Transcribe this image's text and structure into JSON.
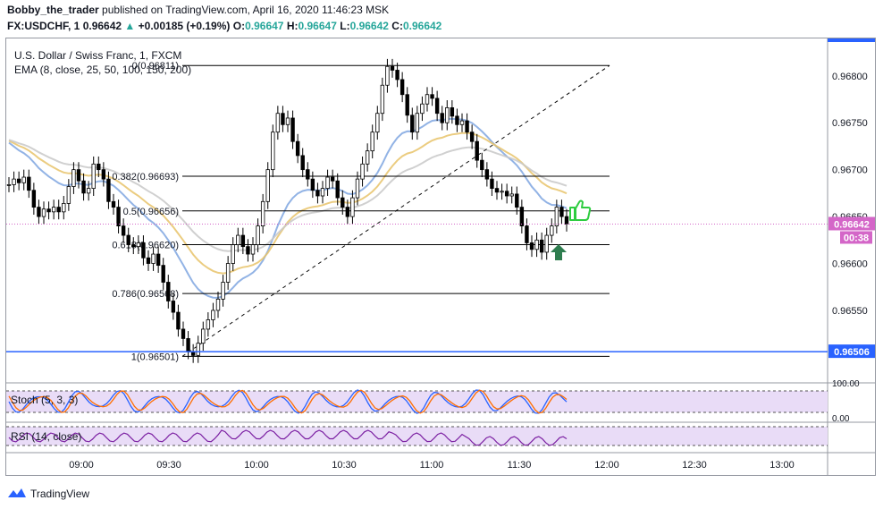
{
  "header": {
    "user": "Bobby_the_trader",
    "published": "published on TradingView.com, April 16, 2020 11:46:23 MSK",
    "symbol": "FX:USDCHF, 1",
    "last": "0.96642",
    "change": "+0.00185 (+0.19%)",
    "o_label": "O:",
    "o": "0.96647",
    "h_label": "H:",
    "h": "0.96647",
    "l_label": "L:",
    "l": "0.96642",
    "c_label": "C:",
    "c": "0.96642"
  },
  "legend": {
    "title": "U.S. Dollar / Swiss Franc, 1, FXCM",
    "ema": "EMA (8, close, 25, 50, 100, 150, 200)"
  },
  "indicators": {
    "stoch": "Stoch (5, 3, 3)",
    "rsi": "RSI (14, close)",
    "stoch_scale_top": "100.00",
    "stoch_scale_bottom": "0.00"
  },
  "badges": {
    "price": "0.96642",
    "countdown": "00:38",
    "level": "0.96506"
  },
  "footer": {
    "brand": "TradingView"
  },
  "colors": {
    "up_green": "#26a69a",
    "fib_line": "#000000",
    "h_level": "#2962ff",
    "price_badge": "#d466c8",
    "ema_blue": "#7fa6e0",
    "ema_gold": "#e8c36a",
    "ema_grey": "#c8c8c8",
    "stoch_k": "#2962ff",
    "stoch_d": "#ff6d00",
    "rsi": "#7b1fa2",
    "band": "#e9dcf7"
  },
  "chart_data": {
    "type": "candlestick",
    "price_axis_ticks": [
      "0.96800",
      "0.96750",
      "0.96700",
      "0.96650",
      "0.96600",
      "0.96550"
    ],
    "time_axis_ticks": [
      "09:00",
      "09:30",
      "10:00",
      "10:30",
      "11:00",
      "11:30",
      "12:00",
      "12:30",
      "13:00"
    ],
    "fib_levels": [
      {
        "label": "0(0.96811)",
        "value": 0.96811
      },
      {
        "label": "0.382(0.96693)",
        "value": 0.96693
      },
      {
        "label": "0.5(0.96656)",
        "value": 0.96656
      },
      {
        "label": "0.618(0.96620)",
        "value": 0.9662
      },
      {
        "label": "0.786(0.96568)",
        "value": 0.96568
      },
      {
        "label": "1(0.96501)",
        "value": 0.96501
      }
    ],
    "horizontal_level": 0.96506,
    "last_price": 0.96642,
    "ylim": [
      0.96488,
      0.96836
    ],
    "closes": [
      0.96684,
      0.9669,
      0.96686,
      0.96692,
      0.96678,
      0.9666,
      0.9665,
      0.96658,
      0.96655,
      0.9666,
      0.96655,
      0.96664,
      0.96682,
      0.967,
      0.96688,
      0.96675,
      0.9668,
      0.96706,
      0.967,
      0.9669,
      0.96666,
      0.9666,
      0.9664,
      0.9663,
      0.9662,
      0.96618,
      0.96622,
      0.96606,
      0.966,
      0.9661,
      0.96598,
      0.9658,
      0.9656,
      0.96548,
      0.9653,
      0.9652,
      0.96506,
      0.96502,
      0.96515,
      0.9653,
      0.9654,
      0.9655,
      0.96562,
      0.9658,
      0.966,
      0.9662,
      0.9663,
      0.96618,
      0.9661,
      0.9662,
      0.9664,
      0.96666,
      0.967,
      0.9674,
      0.9676,
      0.96748,
      0.96755,
      0.9673,
      0.96715,
      0.967,
      0.9669,
      0.96678,
      0.96672,
      0.9668,
      0.96692,
      0.96688,
      0.9667,
      0.9666,
      0.9665,
      0.9667,
      0.9669,
      0.96706,
      0.9672,
      0.9674,
      0.9676,
      0.9679,
      0.9681,
      0.96806,
      0.96796,
      0.9678,
      0.96758,
      0.9674,
      0.9676,
      0.9677,
      0.9678,
      0.96776,
      0.9676,
      0.9675,
      0.96766,
      0.96757,
      0.96748,
      0.96752,
      0.9674,
      0.9673,
      0.9671,
      0.967,
      0.9669,
      0.9668,
      0.96676,
      0.96677,
      0.96672,
      0.96674,
      0.9666,
      0.9664,
      0.96622,
      0.96615,
      0.96625,
      0.96612,
      0.9663,
      0.9664,
      0.9666,
      0.9665,
      0.96642
    ],
    "stoch_range": [
      0,
      100
    ],
    "rsi_range": [
      0,
      100
    ]
  }
}
